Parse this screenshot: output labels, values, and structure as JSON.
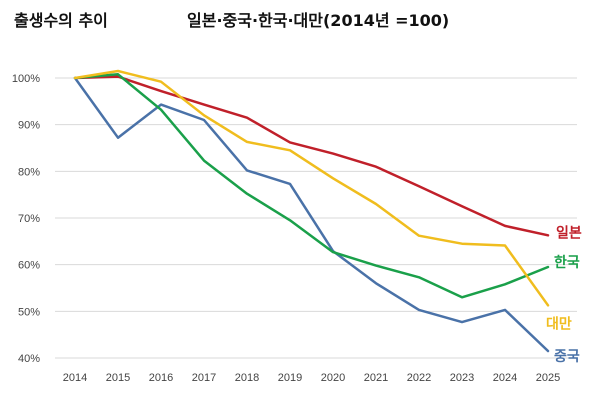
{
  "header": {
    "title": "출생수의 추이",
    "subtitle": "일본·중국·한국·대만(2014년 =100)"
  },
  "chart_data": {
    "type": "line",
    "title": "출생수의 추이",
    "subtitle": "일본·중국·한국·대만(2014년 =100)",
    "xlabel": "",
    "ylabel": "",
    "x": [
      2014,
      2015,
      2016,
      2017,
      2018,
      2019,
      2020,
      2021,
      2022,
      2023,
      2024,
      2025
    ],
    "ylim": [
      40,
      100
    ],
    "yticks": [
      40,
      50,
      60,
      70,
      80,
      90,
      100
    ],
    "ytick_labels": [
      "40%",
      "50%",
      "60%",
      "70%",
      "80%",
      "90%",
      "100%"
    ],
    "grid": true,
    "series": [
      {
        "name": "일본",
        "color": "#c0202a",
        "values": [
          100,
          100.3,
          97.2,
          94.3,
          91.5,
          86.2,
          83.8,
          81.0,
          76.8,
          72.5,
          68.3,
          66.3
        ]
      },
      {
        "name": "중국",
        "color": "#4a72a8",
        "values": [
          100,
          87.2,
          94.3,
          91.0,
          80.2,
          77.3,
          62.9,
          56.0,
          50.3,
          47.7,
          50.3,
          41.5
        ]
      },
      {
        "name": "한국",
        "color": "#1aa04a",
        "values": [
          100,
          100.8,
          93.2,
          82.3,
          75.2,
          69.5,
          62.7,
          59.8,
          57.3,
          53.0,
          55.8,
          59.5
        ]
      },
      {
        "name": "대만",
        "color": "#f0bd1e",
        "values": [
          100,
          101.5,
          99.2,
          92.0,
          86.3,
          84.5,
          78.5,
          73.0,
          66.2,
          64.5,
          64.1,
          51.3
        ]
      }
    ]
  }
}
